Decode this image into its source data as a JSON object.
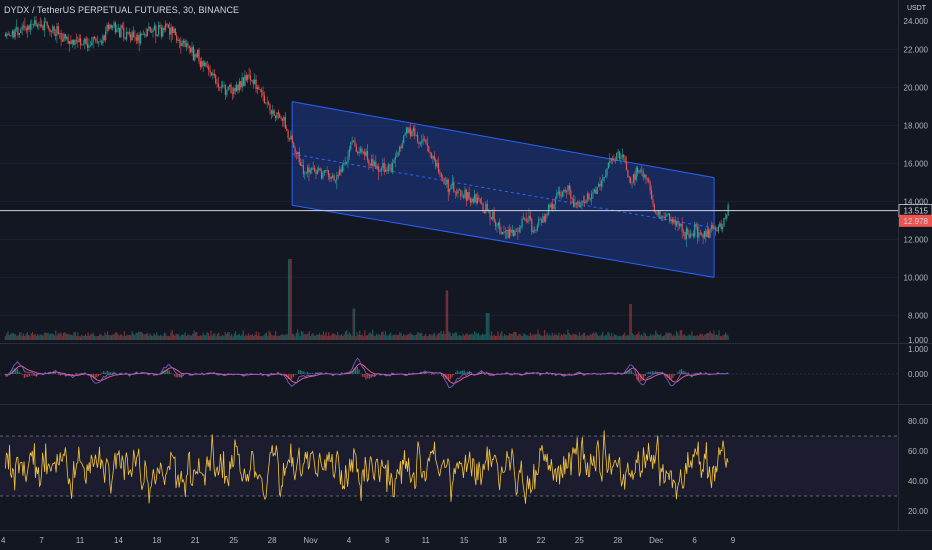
{
  "header": {
    "symbol_title": "DYDX / TetherUS PERPETUAL FUTURES, 30, BINANCE",
    "currency": "USDT"
  },
  "colors": {
    "background": "#131722",
    "candle_up": "#26a69a",
    "candle_down": "#ef5350",
    "channel_fill": "#1e3a8a",
    "channel_line": "#2962ff",
    "rsi": "#f5c542",
    "macd_line": "#7e57c2",
    "signal_line": "#f06292",
    "price_marker_red": "#ef5350"
  },
  "chart_data": {
    "type": "candlestick",
    "price_axis": {
      "ticks": [
        22.0,
        20.0,
        18.0,
        16.0,
        14.0,
        12.0,
        10.0,
        8.0
      ],
      "labels": [
        "22.000",
        "20.000",
        "18.000",
        "16.000",
        "14.000",
        "12.000",
        "10.000",
        "8.000"
      ],
      "top_partial_label": "24.000",
      "range": [
        6.6,
        24.6
      ]
    },
    "time_axis": {
      "labels": [
        "4",
        "7",
        "11",
        "14",
        "18",
        "21",
        "25",
        "28",
        "Nov",
        "4",
        "8",
        "11",
        "15",
        "18",
        "22",
        "25",
        "28",
        "Dec",
        "6",
        "9"
      ]
    },
    "price_path": [
      {
        "t": 0.0,
        "p": 22.8
      },
      {
        "t": 3.0,
        "p": 23.4
      },
      {
        "t": 6.0,
        "p": 22.5
      },
      {
        "t": 8.0,
        "p": 22.3
      },
      {
        "t": 10.0,
        "p": 23.2
      },
      {
        "t": 12.0,
        "p": 22.4
      },
      {
        "t": 14.0,
        "p": 23.1
      },
      {
        "t": 15.5,
        "p": 23.0
      },
      {
        "t": 17.0,
        "p": 22.0
      },
      {
        "t": 18.5,
        "p": 21.2
      },
      {
        "t": 20.0,
        "p": 20.0
      },
      {
        "t": 21.5,
        "p": 19.9
      },
      {
        "t": 22.5,
        "p": 20.6
      },
      {
        "t": 23.5,
        "p": 19.8
      },
      {
        "t": 24.5,
        "p": 18.8
      },
      {
        "t": 25.5,
        "p": 18.5
      },
      {
        "t": 26.5,
        "p": 17.0
      },
      {
        "t": 27.5,
        "p": 15.8
      },
      {
        "t": 29.0,
        "p": 15.6
      },
      {
        "t": 30.5,
        "p": 15.2
      },
      {
        "t": 31.5,
        "p": 16.0
      },
      {
        "t": 32.0,
        "p": 17.2
      },
      {
        "t": 33.5,
        "p": 16.2
      },
      {
        "t": 34.5,
        "p": 15.7
      },
      {
        "t": 35.5,
        "p": 15.8
      },
      {
        "t": 36.5,
        "p": 16.7
      },
      {
        "t": 37.0,
        "p": 17.6
      },
      {
        "t": 38.0,
        "p": 17.3
      },
      {
        "t": 39.0,
        "p": 17.0
      },
      {
        "t": 40.0,
        "p": 15.6
      },
      {
        "t": 41.0,
        "p": 14.6
      },
      {
        "t": 42.0,
        "p": 14.5
      },
      {
        "t": 43.0,
        "p": 14.3
      },
      {
        "t": 44.0,
        "p": 14.0
      },
      {
        "t": 45.0,
        "p": 13.0
      },
      {
        "t": 46.0,
        "p": 12.3
      },
      {
        "t": 47.0,
        "p": 12.4
      },
      {
        "t": 48.0,
        "p": 13.2
      },
      {
        "t": 49.0,
        "p": 12.5
      },
      {
        "t": 50.0,
        "p": 13.2
      },
      {
        "t": 51.0,
        "p": 14.4
      },
      {
        "t": 52.0,
        "p": 14.5
      },
      {
        "t": 53.0,
        "p": 13.8
      },
      {
        "t": 54.0,
        "p": 14.3
      },
      {
        "t": 55.0,
        "p": 14.9
      },
      {
        "t": 56.0,
        "p": 16.3
      },
      {
        "t": 57.0,
        "p": 16.4
      },
      {
        "t": 57.7,
        "p": 15.0
      },
      {
        "t": 58.5,
        "p": 15.6
      },
      {
        "t": 59.2,
        "p": 15.5
      },
      {
        "t": 60.0,
        "p": 13.4
      },
      {
        "t": 61.0,
        "p": 13.3
      },
      {
        "t": 62.0,
        "p": 12.8
      },
      {
        "t": 63.0,
        "p": 12.2
      },
      {
        "t": 64.0,
        "p": 12.4
      },
      {
        "t": 65.0,
        "p": 12.3
      },
      {
        "t": 66.0,
        "p": 12.6
      },
      {
        "t": 66.8,
        "p": 13.5
      }
    ],
    "time_range": [
      -0.5,
      82.5
    ],
    "channel": {
      "upper": [
        {
          "t": 26.5,
          "p": 19.25
        },
        {
          "t": 65.5,
          "p": 15.25
        }
      ],
      "lower": [
        {
          "t": 26.5,
          "p": 13.8
        },
        {
          "t": 65.5,
          "p": 10.0
        }
      ],
      "mid": [
        {
          "t": 26.5,
          "p": 16.5
        },
        {
          "t": 65.5,
          "p": 12.6
        }
      ]
    },
    "price_lines": [
      {
        "value": 13.515,
        "label": "13.515",
        "style": "white-line"
      },
      {
        "value": 12.978,
        "label": "12.978",
        "style": "red-marker"
      }
    ],
    "volume": {
      "axis_label": "1.000",
      "spikes": [
        {
          "t": 26.3,
          "v": 0.9
        },
        {
          "t": 32.2,
          "v": 0.35
        },
        {
          "t": 40.8,
          "v": 0.55
        },
        {
          "t": 44.6,
          "v": 0.3
        },
        {
          "t": 57.8,
          "v": 0.4
        }
      ]
    },
    "macd": {
      "axis_labels": [
        "1.000",
        "0.000"
      ],
      "range": [
        -1.6,
        1.6
      ],
      "spikes": [
        {
          "t": 1.0,
          "v": 0.9
        },
        {
          "t": 8.2,
          "v": -0.7
        },
        {
          "t": 15.0,
          "v": 0.6
        },
        {
          "t": 26.4,
          "v": -1.0
        },
        {
          "t": 32.4,
          "v": 0.9
        },
        {
          "t": 41.0,
          "v": -1.0
        },
        {
          "t": 57.8,
          "v": 0.7
        },
        {
          "t": 58.6,
          "v": -0.9
        },
        {
          "t": 61.5,
          "v": -0.8
        }
      ]
    },
    "rsi": {
      "axis_labels": [
        "80.00",
        "60.00",
        "40.00",
        "20.00"
      ],
      "ticks": [
        80,
        60,
        40,
        20
      ],
      "range": [
        10,
        90
      ],
      "upper_band": 70,
      "lower_band": 30,
      "end_t": 66.8
    }
  }
}
